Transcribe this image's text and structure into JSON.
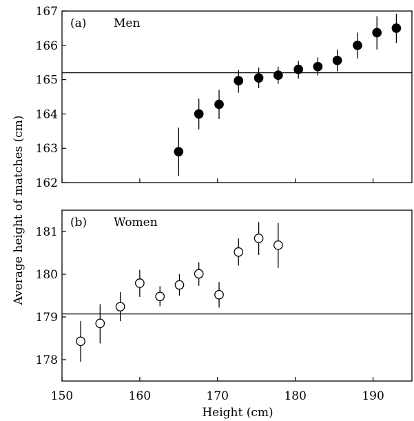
{
  "chart_data": [
    {
      "type": "scatter",
      "panel_label": "(a)",
      "panel_title": "Men",
      "xlim": [
        150,
        195
      ],
      "ylim": [
        162,
        167
      ],
      "y_ticks": [
        162,
        163,
        164,
        165,
        166,
        167
      ],
      "reference_line": 165.2,
      "marker": "filled",
      "points": [
        {
          "x": 165.0,
          "y": 162.9,
          "lo": 162.2,
          "hi": 163.6
        },
        {
          "x": 167.6,
          "y": 164.0,
          "lo": 163.55,
          "hi": 164.45
        },
        {
          "x": 170.2,
          "y": 164.28,
          "lo": 163.85,
          "hi": 164.7
        },
        {
          "x": 172.7,
          "y": 164.97,
          "lo": 164.62,
          "hi": 165.28
        },
        {
          "x": 175.3,
          "y": 165.05,
          "lo": 164.75,
          "hi": 165.35
        },
        {
          "x": 177.8,
          "y": 165.13,
          "lo": 164.88,
          "hi": 165.38
        },
        {
          "x": 180.4,
          "y": 165.3,
          "lo": 165.03,
          "hi": 165.55
        },
        {
          "x": 182.9,
          "y": 165.38,
          "lo": 165.12,
          "hi": 165.65
        },
        {
          "x": 185.4,
          "y": 165.56,
          "lo": 165.24,
          "hi": 165.88
        },
        {
          "x": 188.0,
          "y": 166.0,
          "lo": 165.62,
          "hi": 166.37
        },
        {
          "x": 190.5,
          "y": 166.37,
          "lo": 165.88,
          "hi": 166.85
        },
        {
          "x": 193.0,
          "y": 166.5,
          "lo": 166.07,
          "hi": 166.92
        }
      ]
    },
    {
      "type": "scatter",
      "panel_label": "(b)",
      "panel_title": "Women",
      "xlim": [
        150,
        195
      ],
      "ylim": [
        177.5,
        181.5
      ],
      "y_ticks": [
        178,
        179,
        180,
        181
      ],
      "reference_line": 179.07,
      "marker": "open",
      "points": [
        {
          "x": 152.4,
          "y": 178.43,
          "lo": 177.95,
          "hi": 178.9
        },
        {
          "x": 154.9,
          "y": 178.85,
          "lo": 178.38,
          "hi": 179.3
        },
        {
          "x": 157.5,
          "y": 179.24,
          "lo": 178.9,
          "hi": 179.58
        },
        {
          "x": 160.0,
          "y": 179.79,
          "lo": 179.47,
          "hi": 180.1
        },
        {
          "x": 162.6,
          "y": 179.48,
          "lo": 179.25,
          "hi": 179.72
        },
        {
          "x": 165.1,
          "y": 179.75,
          "lo": 179.5,
          "hi": 180.0
        },
        {
          "x": 167.6,
          "y": 180.01,
          "lo": 179.73,
          "hi": 180.28
        },
        {
          "x": 170.2,
          "y": 179.52,
          "lo": 179.22,
          "hi": 179.82
        },
        {
          "x": 172.7,
          "y": 180.52,
          "lo": 180.2,
          "hi": 180.84
        },
        {
          "x": 175.3,
          "y": 180.84,
          "lo": 180.45,
          "hi": 181.22
        },
        {
          "x": 177.8,
          "y": 180.68,
          "lo": 180.15,
          "hi": 181.2
        }
      ]
    }
  ],
  "shared": {
    "x_ticks": [
      150,
      160,
      170,
      180,
      190
    ],
    "xlabel": "Height (cm)",
    "ylabel": "Average height of matches (cm)"
  }
}
